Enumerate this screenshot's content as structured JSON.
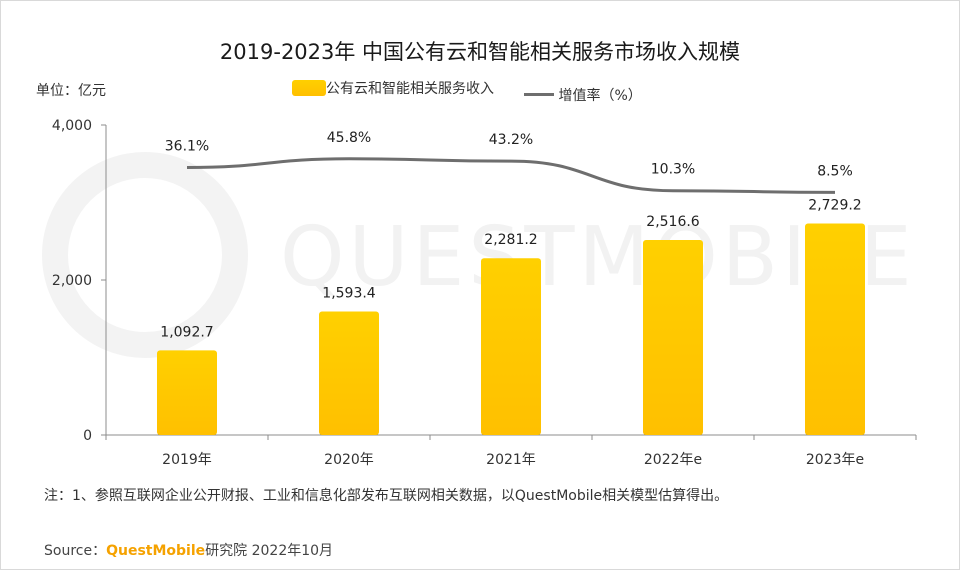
{
  "chart_data": {
    "type": "bar",
    "title": "2019-2023年 中国公有云和智能相关服务市场收入规模",
    "unit_label": "单位：亿元",
    "categories": [
      "2019年",
      "2020年",
      "2021年",
      "2022年e",
      "2023年e"
    ],
    "series": [
      {
        "name": "公有云和智能相关服务收入",
        "type": "bar",
        "values": [
          1092.7,
          1593.4,
          2281.2,
          2516.6,
          2729.2
        ],
        "labels": [
          "1,092.7",
          "1,593.4",
          "2,281.2",
          "2,516.6",
          "2,729.2"
        ],
        "color": "#FFC400"
      },
      {
        "name": "增值率（%）",
        "type": "line",
        "values": [
          36.1,
          45.8,
          43.2,
          10.3,
          8.5
        ],
        "labels": [
          "36.1%",
          "45.8%",
          "43.2%",
          "10.3%",
          "8.5%"
        ],
        "color": "#6E6E6E"
      }
    ],
    "y_ticks": [
      {
        "value": 0,
        "label": "0"
      },
      {
        "value": 2000,
        "label": "2,000"
      },
      {
        "value": 4000,
        "label": "4,000"
      }
    ],
    "ylim": [
      0,
      4000
    ],
    "legend_position": "top-center"
  },
  "watermark_text": "QUESTMOBILE",
  "note": "注：1、参照互联网企业公开财报、工业和信息化部发布互联网相关数据，以QuestMobile相关模型估算得出。",
  "source": {
    "prefix": "Source：",
    "brand": "QuestMobile",
    "suffix": "研究院 2022年10月"
  }
}
